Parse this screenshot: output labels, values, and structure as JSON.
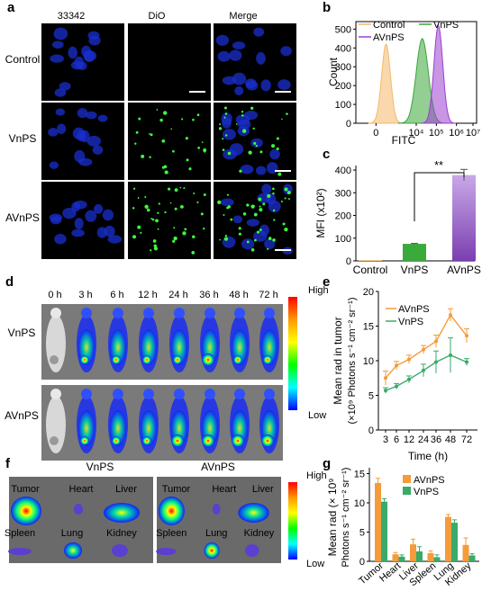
{
  "panels": {
    "a": {
      "letter": "a",
      "columns": [
        "33342",
        "DiO",
        "Merge"
      ],
      "rows": [
        "Control",
        "VnPS",
        "AVnPS"
      ]
    },
    "b": {
      "letter": "b",
      "ylabel": "Count",
      "xlabel": "FITC",
      "legend": [
        "Control",
        "VnPS",
        "AVnPS"
      ],
      "yticks": [
        "0",
        "100",
        "200",
        "300",
        "400",
        "500"
      ],
      "xticks": [
        "0",
        "10⁴",
        "10⁵",
        "10⁶",
        "10⁷"
      ]
    },
    "c": {
      "letter": "c",
      "ylabel": "MFI (x10²)",
      "yticks": [
        "0",
        "100",
        "200",
        "300",
        "400"
      ],
      "significance": "**"
    },
    "d": {
      "letter": "d",
      "times": [
        "0 h",
        "3 h",
        "6 h",
        "12 h",
        "24 h",
        "36 h",
        "48 h",
        "72 h"
      ],
      "rows": [
        "VnPS",
        "AVnPS"
      ],
      "scale_high": "High",
      "scale_low": "Low"
    },
    "e": {
      "letter": "e",
      "ylabel_1": "Mean rad in tumor",
      "ylabel_2": "(×10⁹ Photons s⁻¹ cm⁻² sr⁻¹)",
      "xlabel": "Time (h)",
      "xticks": [
        "3",
        "6",
        "12",
        "24",
        "36",
        "48",
        "72"
      ],
      "yticks": [
        "0",
        "5",
        "10",
        "15",
        "20"
      ],
      "legend": [
        "AVnPS",
        "VnPS"
      ]
    },
    "f": {
      "letter": "f",
      "groups": [
        "VnPS",
        "AVnPS"
      ],
      "organs": [
        "Tumor",
        "Heart",
        "Liver",
        "Spleen",
        "Lung",
        "Kidney"
      ],
      "scale_high": "High",
      "scale_low": "Low"
    },
    "g": {
      "letter": "g",
      "ylabel_1": "Mean rad (× 10⁹",
      "ylabel_2": "Photons s⁻¹ cm⁻² sr⁻¹)",
      "yticks": [
        "0",
        "5",
        "10",
        "15"
      ],
      "legend": [
        "AVnPS",
        "VnPS"
      ]
    }
  },
  "colors": {
    "control": "#f4b86a",
    "vnps": "#3aa63a",
    "avnps": "#9a3fd0",
    "orange": "#f59b3a",
    "green": "#3aaa6a"
  },
  "chart_data": [
    {
      "id": "b",
      "type": "area",
      "title": "",
      "xlabel": "FITC",
      "ylabel": "Count",
      "ylim": [
        0,
        500
      ],
      "series": [
        {
          "name": "Control",
          "peak_x_log10": 2.5,
          "peak_count": 420
        },
        {
          "name": "VnPS",
          "peak_x_log10": 4.3,
          "peak_count": 450
        },
        {
          "name": "AVnPS",
          "peak_x_log10": 5.1,
          "peak_count": 520
        }
      ]
    },
    {
      "id": "c",
      "type": "bar",
      "categories": [
        "Control",
        "VnPS",
        "AVnPS"
      ],
      "values": [
        3,
        75,
        378
      ],
      "errors": [
        0,
        2,
        25
      ],
      "ylabel": "MFI (x10²)",
      "ylim": [
        0,
        420
      ]
    },
    {
      "id": "e",
      "type": "line",
      "x": [
        "3",
        "6",
        "12",
        "24",
        "36",
        "48",
        "72"
      ],
      "xlabel": "Time (h)",
      "ylim": [
        0,
        20
      ],
      "series": [
        {
          "name": "AVnPS",
          "values": [
            7.5,
            9.3,
            10.2,
            11.6,
            12.8,
            16.6,
            13.6
          ],
          "errors": [
            1.0,
            0.6,
            0.6,
            0.6,
            0.9,
            0.9,
            1.0
          ]
        },
        {
          "name": "VnPS",
          "values": [
            5.7,
            6.3,
            7.3,
            8.6,
            9.8,
            10.8,
            9.8
          ],
          "errors": [
            0.4,
            0.4,
            0.5,
            0.9,
            1.6,
            2.5,
            0.5
          ]
        }
      ]
    },
    {
      "id": "g",
      "type": "bar",
      "categories": [
        "Tumor",
        "Heart",
        "Liver",
        "Spleen",
        "Lung",
        "Kidney"
      ],
      "ylim": [
        0,
        15
      ],
      "series": [
        {
          "name": "AVnPS",
          "values": [
            13.4,
            1.2,
            2.9,
            1.4,
            7.6,
            2.8
          ],
          "errors": [
            0.8,
            0.3,
            0.9,
            0.4,
            0.4,
            1.2
          ]
        },
        {
          "name": "VnPS",
          "values": [
            10.2,
            0.8,
            1.7,
            0.7,
            6.6,
            1.0
          ],
          "errors": [
            0.5,
            0.3,
            0.8,
            0.4,
            0.5,
            0.3
          ]
        }
      ]
    }
  ]
}
